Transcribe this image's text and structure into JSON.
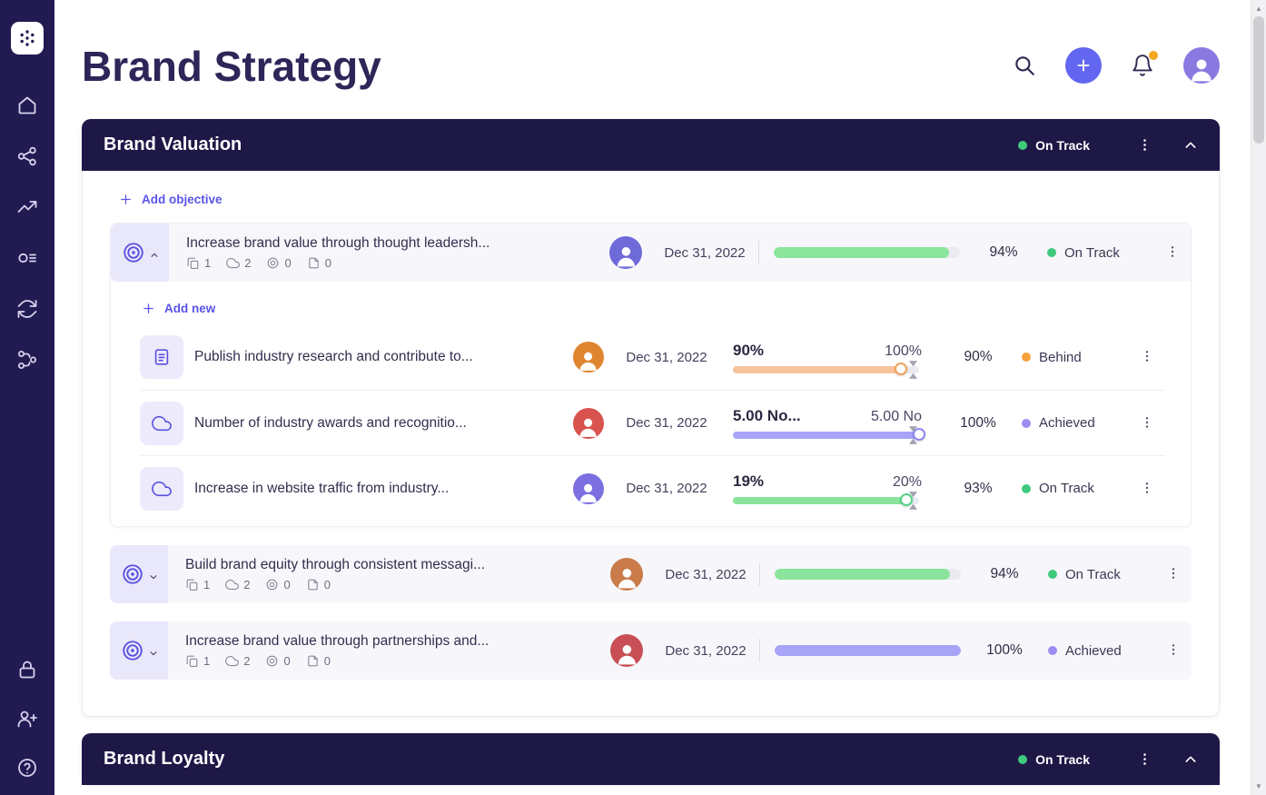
{
  "colors": {
    "sidebar": "#221B52",
    "header": "#1E1847",
    "accent": "#5A54E8",
    "plus_button": "#6366F1",
    "notification_badge": "#F5A623",
    "green_bar": "#8BE49B",
    "green_dot": "#3FC97C",
    "orange_bar": "#F8C39B",
    "orange_dot": "#F6A13B",
    "purple_bar": "#A8A4F7",
    "purple_dot": "#9D8DF2",
    "topbar_avatar": "#8A79E0"
  },
  "page": {
    "title": "Brand Strategy"
  },
  "sidebar": {
    "icons_top": [
      "home-icon",
      "org-chart-icon",
      "trending-up-icon",
      "objectives-icon",
      "cycle-icon",
      "strategy-icon"
    ],
    "icons_bottom": [
      "lock-icon",
      "add-user-icon",
      "help-icon"
    ]
  },
  "section": {
    "title": "Brand Valuation",
    "status": "On Track",
    "add_objective": "Add objective",
    "add_new": "Add new",
    "objectives": [
      {
        "title": "Increase brand value through thought leadersh...",
        "counts": {
          "docs": "1",
          "metrics": "2",
          "targets": "0",
          "notes": "0"
        },
        "date": "Dec 31, 2022",
        "progress": 94,
        "progress_label": "94%",
        "status": "On Track",
        "bar_color": "#8BE49B",
        "dot_color": "#3FC97C",
        "avatar_color": "#6E6AD8"
      },
      {
        "title": "Build brand equity through consistent messagi...",
        "counts": {
          "docs": "1",
          "metrics": "2",
          "targets": "0",
          "notes": "0"
        },
        "date": "Dec 31, 2022",
        "progress": 94,
        "progress_label": "94%",
        "status": "On Track",
        "bar_color": "#8BE49B",
        "dot_color": "#3FC97C",
        "avatar_color": "#C97B4A"
      },
      {
        "title": "Increase brand value through partnerships and...",
        "counts": {
          "docs": "1",
          "metrics": "2",
          "targets": "0",
          "notes": "0"
        },
        "date": "Dec 31, 2022",
        "progress": 100,
        "progress_label": "100%",
        "status": "Achieved",
        "bar_color": "#A8A4F7",
        "dot_color": "#9D8DF2",
        "avatar_color": "#C94F56"
      }
    ],
    "key_results": [
      {
        "icon": "document-icon",
        "title": "Publish industry research and contribute to...",
        "date": "Dec 31, 2022",
        "current": "90%",
        "target": "100%",
        "progress": 90,
        "percent": "90%",
        "status": "Behind",
        "bar_color": "#F8C39B",
        "knob_color": "#EFA35C",
        "dot_color": "#F6A13B",
        "avatar_color": "#E0852F"
      },
      {
        "icon": "cloud-icon",
        "title": "Number of industry awards and recognitio...",
        "date": "Dec 31, 2022",
        "current": "5.00 No...",
        "target": "5.00 No",
        "progress": 100,
        "percent": "100%",
        "status": "Achieved",
        "bar_color": "#A8A4F7",
        "knob_color": "#8F8AF0",
        "dot_color": "#9D8DF2",
        "avatar_color": "#D9534F"
      },
      {
        "icon": "cloud-icon",
        "title": "Increase in website traffic from industry...",
        "date": "Dec 31, 2022",
        "current": "19%",
        "target": "20%",
        "progress": 93,
        "percent": "93%",
        "status": "On Track",
        "bar_color": "#8BE49B",
        "knob_color": "#57D289",
        "dot_color": "#3FC97C",
        "avatar_color": "#7C6FE0"
      }
    ]
  },
  "next_section": {
    "title": "Brand Loyalty",
    "status": "On Track"
  }
}
